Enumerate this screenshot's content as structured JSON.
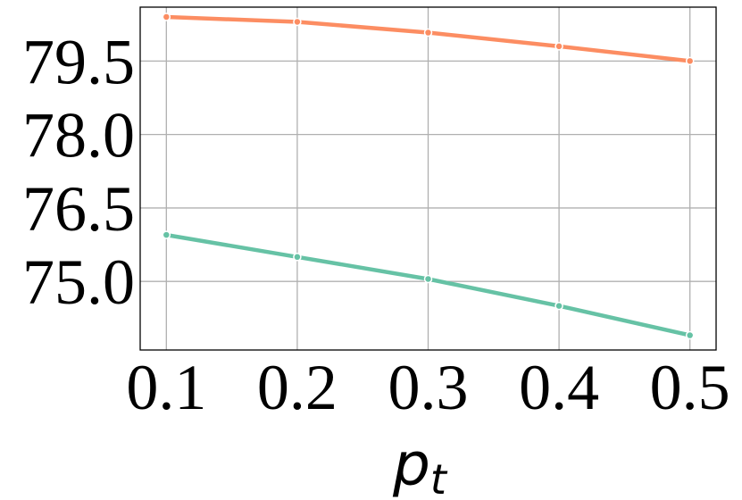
{
  "chart_data": {
    "type": "line",
    "x": [
      0.1,
      0.2,
      0.3,
      0.4,
      0.5
    ],
    "x_tick_labels": [
      "0.1",
      "0.2",
      "0.3",
      "0.4",
      "0.5"
    ],
    "y_ticks": [
      75.0,
      76.5,
      78.0,
      79.5
    ],
    "y_tick_labels": [
      "75.0",
      "76.5",
      "78.0",
      "79.5"
    ],
    "xlim": [
      0.08,
      0.52
    ],
    "ylim": [
      73.6,
      80.6
    ],
    "xlabel": "p",
    "xlabel_subscript": "t",
    "ylabel": "",
    "title": "",
    "grid": true,
    "series": [
      {
        "values": [
          80.4,
          80.3,
          80.08,
          79.8,
          79.5
        ],
        "color": "#fc8d62"
      },
      {
        "values": [
          75.95,
          75.5,
          75.05,
          74.5,
          73.9
        ],
        "color": "#66c2a5"
      }
    ]
  }
}
